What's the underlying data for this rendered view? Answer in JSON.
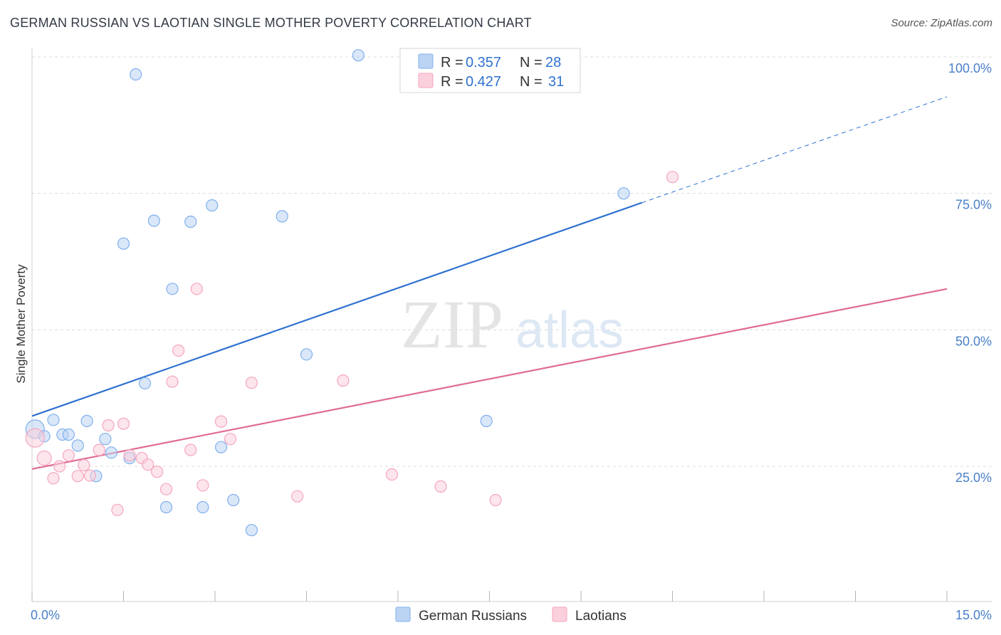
{
  "title": "GERMAN RUSSIAN VS LAOTIAN SINGLE MOTHER POVERTY CORRELATION CHART",
  "source": "Source: ZipAtlas.com",
  "watermark": {
    "zip": "ZIP",
    "atlas": "atlas"
  },
  "chart_data": {
    "type": "scatter",
    "title": "GERMAN RUSSIAN VS LAOTIAN SINGLE MOTHER POVERTY CORRELATION CHART",
    "xlabel": "",
    "ylabel": "Single Mother Poverty",
    "xlim": [
      0,
      15
    ],
    "ylim": [
      0,
      105
    ],
    "x_tick_labels": [
      "0.0%",
      "15.0%"
    ],
    "y_ticks": [
      25,
      50,
      75,
      100
    ],
    "y_tick_labels": [
      "25.0%",
      "50.0%",
      "75.0%",
      "100.0%"
    ],
    "grid": true,
    "legend_position": "top-center",
    "series": [
      {
        "name": "German Russians",
        "color": "#7fb0ec",
        "line_color": "#2f72d0",
        "R": "0.357",
        "N": "28",
        "trend": {
          "x0": 0,
          "y0": 34.2,
          "x1": 10.0,
          "y1": 73.3,
          "dash_to_x": 15.0,
          "dash_to_y": 92.7
        },
        "points": [
          [
            0.05,
            31.8
          ],
          [
            0.2,
            30.5
          ],
          [
            0.35,
            33.5
          ],
          [
            0.5,
            30.8
          ],
          [
            0.6,
            30.8
          ],
          [
            0.75,
            28.8
          ],
          [
            0.9,
            33.3
          ],
          [
            1.05,
            23.2
          ],
          [
            1.2,
            30.0
          ],
          [
            1.3,
            27.5
          ],
          [
            1.5,
            65.8
          ],
          [
            1.6,
            26.5
          ],
          [
            1.7,
            96.8
          ],
          [
            1.85,
            40.2
          ],
          [
            2.0,
            70.0
          ],
          [
            2.2,
            17.5
          ],
          [
            2.3,
            57.5
          ],
          [
            2.6,
            69.8
          ],
          [
            2.8,
            17.5
          ],
          [
            2.95,
            72.8
          ],
          [
            3.1,
            28.5
          ],
          [
            3.3,
            18.8
          ],
          [
            3.6,
            13.3
          ],
          [
            4.1,
            70.8
          ],
          [
            4.5,
            45.5
          ],
          [
            5.35,
            100.3
          ],
          [
            7.45,
            33.3
          ],
          [
            9.7,
            75.0
          ]
        ]
      },
      {
        "name": "Laotians",
        "color": "#f4a6bf",
        "line_color": "#e06b93",
        "R": "0.427",
        "N": "31",
        "trend": {
          "x0": 0,
          "y0": 24.5,
          "x1": 15.0,
          "y1": 57.5
        },
        "points": [
          [
            0.05,
            30.2
          ],
          [
            0.2,
            26.5
          ],
          [
            0.35,
            22.8
          ],
          [
            0.45,
            25.0
          ],
          [
            0.6,
            27.0
          ],
          [
            0.75,
            23.2
          ],
          [
            0.85,
            25.2
          ],
          [
            0.95,
            23.3
          ],
          [
            1.1,
            28.0
          ],
          [
            1.25,
            32.5
          ],
          [
            1.4,
            17.0
          ],
          [
            1.5,
            32.8
          ],
          [
            1.6,
            27.0
          ],
          [
            1.8,
            26.5
          ],
          [
            1.9,
            25.3
          ],
          [
            2.05,
            24.0
          ],
          [
            2.2,
            20.8
          ],
          [
            2.3,
            40.5
          ],
          [
            2.4,
            46.2
          ],
          [
            2.6,
            28.0
          ],
          [
            2.7,
            57.5
          ],
          [
            2.8,
            21.5
          ],
          [
            3.1,
            33.2
          ],
          [
            3.25,
            30.0
          ],
          [
            3.6,
            40.3
          ],
          [
            4.35,
            19.5
          ],
          [
            5.1,
            40.7
          ],
          [
            5.9,
            23.5
          ],
          [
            6.7,
            21.3
          ],
          [
            7.6,
            18.8
          ],
          [
            10.5,
            78.0
          ]
        ]
      }
    ]
  },
  "legend": {
    "r_label": "R =",
    "n_label": "N ="
  }
}
